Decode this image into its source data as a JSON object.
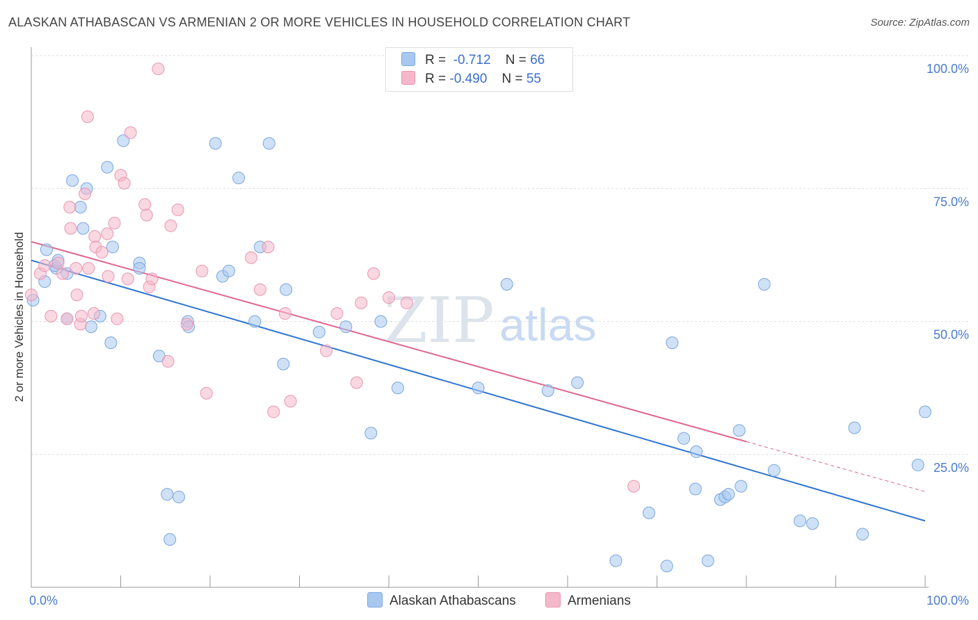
{
  "title": "ALASKAN ATHABASCAN VS ARMENIAN 2 OR MORE VEHICLES IN HOUSEHOLD CORRELATION CHART",
  "source": "Source: ZipAtlas.com",
  "watermark": {
    "zip": "ZIP",
    "atlas": "atlas"
  },
  "legend": {
    "r_label": "R =",
    "n_label": "N =",
    "rows": [
      {
        "r": "-0.712",
        "n": "66",
        "color": "#a8c8f0"
      },
      {
        "r": "-0.490",
        "n": "55",
        "color": "#f5b8cb"
      }
    ]
  },
  "bottom_legend": [
    "Alaskan Athabascans",
    "Armenians"
  ],
  "chart_data": {
    "type": "scatter",
    "title": "ALASKAN ATHABASCAN VS ARMENIAN 2 OR MORE VEHICLES IN HOUSEHOLD CORRELATION CHART",
    "xlabel": "",
    "ylabel": "2 or more Vehicles in Household",
    "x_tick_labels": [
      "0.0%",
      "100.0%"
    ],
    "y_tick_labels": [
      "25.0%",
      "50.0%",
      "75.0%",
      "100.0%"
    ],
    "xlim": [
      0,
      100
    ],
    "ylim": [
      0,
      100
    ],
    "grid": true,
    "legend_position": "top-center",
    "series": [
      {
        "name": "Alaskan Athabascans",
        "color": "#a8c8f0",
        "stroke": "#7aa6de",
        "line_color": "#2f74d0",
        "trend": {
          "x0": 0,
          "y0": 61.5,
          "x1": 100,
          "y1": 12.5,
          "dashed_from": null
        },
        "points": [
          [
            0.2,
            54
          ],
          [
            1.5,
            57.5
          ],
          [
            1.7,
            63.5
          ],
          [
            2.8,
            60
          ],
          [
            2.6,
            60.5
          ],
          [
            3,
            61.5
          ],
          [
            4,
            59
          ],
          [
            4,
            50.5
          ],
          [
            4.6,
            76.5
          ],
          [
            5.5,
            71.5
          ],
          [
            5.8,
            67.5
          ],
          [
            6.2,
            75
          ],
          [
            6.7,
            49
          ],
          [
            7.7,
            51
          ],
          [
            8.5,
            79
          ],
          [
            8.9,
            46
          ],
          [
            9.1,
            64
          ],
          [
            10.3,
            84
          ],
          [
            12.1,
            61
          ],
          [
            12.1,
            60
          ],
          [
            14.3,
            43.5
          ],
          [
            15.2,
            17.5
          ],
          [
            15.5,
            9
          ],
          [
            16.5,
            17
          ],
          [
            17.5,
            50
          ],
          [
            17.6,
            49
          ],
          [
            20.6,
            83.5
          ],
          [
            21.4,
            58.5
          ],
          [
            22.1,
            59.5
          ],
          [
            23.2,
            77
          ],
          [
            25,
            50
          ],
          [
            25.6,
            64
          ],
          [
            26.6,
            83.5
          ],
          [
            28.5,
            56
          ],
          [
            28.2,
            42
          ],
          [
            32.2,
            48
          ],
          [
            35.2,
            49
          ],
          [
            38,
            29
          ],
          [
            39.1,
            50
          ],
          [
            41,
            37.5
          ],
          [
            50,
            37.5
          ],
          [
            53.2,
            57
          ],
          [
            57.8,
            37
          ],
          [
            61.1,
            38.5
          ],
          [
            65.4,
            5
          ],
          [
            69.1,
            14
          ],
          [
            71.1,
            4
          ],
          [
            71.7,
            46
          ],
          [
            73,
            28
          ],
          [
            74.3,
            18.5
          ],
          [
            74.4,
            25.5
          ],
          [
            75.7,
            5
          ],
          [
            77.1,
            16.5
          ],
          [
            77.6,
            17
          ],
          [
            78,
            17.5
          ],
          [
            79.2,
            29.5
          ],
          [
            79.4,
            19
          ],
          [
            82,
            57
          ],
          [
            83.1,
            22
          ],
          [
            86,
            12.5
          ],
          [
            87.4,
            12
          ],
          [
            92.1,
            30
          ],
          [
            93,
            10
          ],
          [
            99.2,
            23
          ],
          [
            100,
            33
          ]
        ]
      },
      {
        "name": "Armenians",
        "color": "#f5b8cb",
        "stroke": "#e896b2",
        "line_color": "#e06690",
        "trend": {
          "x0": 0,
          "y0": 65,
          "x1": 100,
          "y1": 18,
          "dashed_from": 80
        },
        "points": [
          [
            0,
            55
          ],
          [
            1,
            59
          ],
          [
            1.5,
            60.5
          ],
          [
            2.2,
            51
          ],
          [
            3,
            61
          ],
          [
            3.5,
            59
          ],
          [
            4,
            50.5
          ],
          [
            4.3,
            71.5
          ],
          [
            4.4,
            67.5
          ],
          [
            5,
            60
          ],
          [
            5.1,
            55
          ],
          [
            5.5,
            49.5
          ],
          [
            5.6,
            51
          ],
          [
            6,
            74
          ],
          [
            6.3,
            88.5
          ],
          [
            6.4,
            60
          ],
          [
            7,
            51.5
          ],
          [
            7.1,
            66
          ],
          [
            7.2,
            64
          ],
          [
            7.9,
            63
          ],
          [
            8.5,
            66.5
          ],
          [
            8.6,
            58.5
          ],
          [
            9.3,
            68.5
          ],
          [
            9.6,
            50.5
          ],
          [
            10,
            77.5
          ],
          [
            10.4,
            76
          ],
          [
            10.8,
            58
          ],
          [
            11.1,
            85.5
          ],
          [
            12.7,
            72
          ],
          [
            12.9,
            70
          ],
          [
            13.2,
            56.5
          ],
          [
            13.5,
            58
          ],
          [
            14.2,
            97.5
          ],
          [
            15.3,
            42.5
          ],
          [
            15.6,
            68
          ],
          [
            16.4,
            71
          ],
          [
            17.4,
            49.5
          ],
          [
            19.1,
            59.5
          ],
          [
            19.6,
            36.5
          ],
          [
            24.6,
            62
          ],
          [
            25.6,
            56
          ],
          [
            26.5,
            64
          ],
          [
            27.1,
            33
          ],
          [
            28.4,
            51.5
          ],
          [
            29,
            35
          ],
          [
            33,
            44.5
          ],
          [
            34.2,
            51.5
          ],
          [
            36.4,
            38.5
          ],
          [
            36.9,
            53.5
          ],
          [
            38.3,
            59
          ],
          [
            40,
            54.5
          ],
          [
            42,
            53.5
          ],
          [
            67.4,
            19
          ]
        ]
      }
    ]
  }
}
